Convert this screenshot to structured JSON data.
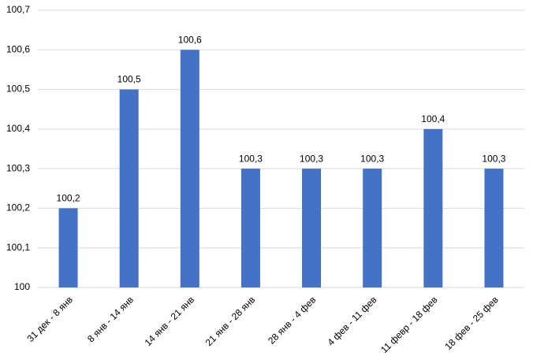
{
  "chart_data": {
    "type": "bar",
    "categories": [
      "31 дек - 8 янв",
      "8 янв - 14 янв",
      "14 янв - 21 янв",
      "21 янв - 28 янв",
      "28 янв - 4 фев",
      "4 фев - 11 фев",
      "11 февр - 18 фев",
      "18 фев - 25 фев"
    ],
    "values": [
      100.2,
      100.5,
      100.6,
      100.3,
      100.3,
      100.3,
      100.4,
      100.3
    ],
    "value_labels": [
      "100,2",
      "100,5",
      "100,6",
      "100,3",
      "100,3",
      "100,3",
      "100,4",
      "100,3"
    ],
    "color": "#4472c4",
    "ylim": [
      100,
      100.7
    ],
    "yticks": [
      100,
      {
        "value": 100.1,
        "label": "100,1"
      },
      {
        "value": 100.2,
        "label": "100,2"
      },
      {
        "value": 100.3,
        "label": "100,3"
      },
      {
        "value": 100.4,
        "label": "100,4"
      },
      {
        "value": 100.5,
        "label": "100,5"
      },
      {
        "value": 100.6,
        "label": "100,6"
      },
      {
        "value": 100.7,
        "label": "100,7"
      }
    ],
    "grid": true
  }
}
